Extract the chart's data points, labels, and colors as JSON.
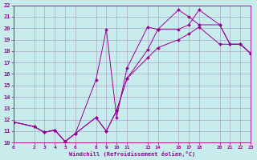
{
  "xlabel": "Windchill (Refroidissement éolien,°C)",
  "bg_color": "#c8ecec",
  "grid_color": "#aaaacc",
  "line_color": "#990099",
  "xlim": [
    0,
    23
  ],
  "ylim": [
    10,
    22
  ],
  "xticks": [
    0,
    2,
    3,
    4,
    5,
    6,
    8,
    9,
    10,
    11,
    13,
    14,
    16,
    17,
    18,
    20,
    21,
    22,
    23
  ],
  "yticks": [
    10,
    11,
    12,
    13,
    14,
    15,
    16,
    17,
    18,
    19,
    20,
    21,
    22
  ],
  "line1_x": [
    0,
    2,
    3,
    4,
    5,
    6,
    8,
    9,
    10,
    11,
    13,
    14,
    16,
    17,
    18,
    20,
    21,
    22,
    23
  ],
  "line1_y": [
    11.8,
    11.4,
    10.9,
    11.1,
    10.1,
    10.8,
    15.5,
    19.9,
    12.2,
    16.5,
    20.1,
    19.9,
    21.6,
    21.0,
    20.3,
    20.3,
    18.6,
    18.6,
    17.8
  ],
  "line2_x": [
    0,
    2,
    3,
    4,
    5,
    6,
    8,
    9,
    10,
    11,
    13,
    14,
    16,
    17,
    18,
    20,
    21,
    22,
    23
  ],
  "line2_y": [
    11.8,
    11.4,
    10.9,
    11.1,
    10.1,
    10.8,
    12.2,
    11.0,
    12.8,
    15.6,
    18.1,
    19.9,
    19.9,
    20.3,
    21.6,
    20.3,
    18.6,
    18.6,
    17.8
  ],
  "line3_x": [
    0,
    2,
    3,
    4,
    5,
    6,
    8,
    9,
    10,
    11,
    13,
    14,
    16,
    17,
    18,
    20,
    21,
    22,
    23
  ],
  "line3_y": [
    11.8,
    11.4,
    10.9,
    11.1,
    10.1,
    10.8,
    12.2,
    11.0,
    12.8,
    15.6,
    17.4,
    18.3,
    19.0,
    19.5,
    20.1,
    18.6,
    18.6,
    18.6,
    17.8
  ]
}
